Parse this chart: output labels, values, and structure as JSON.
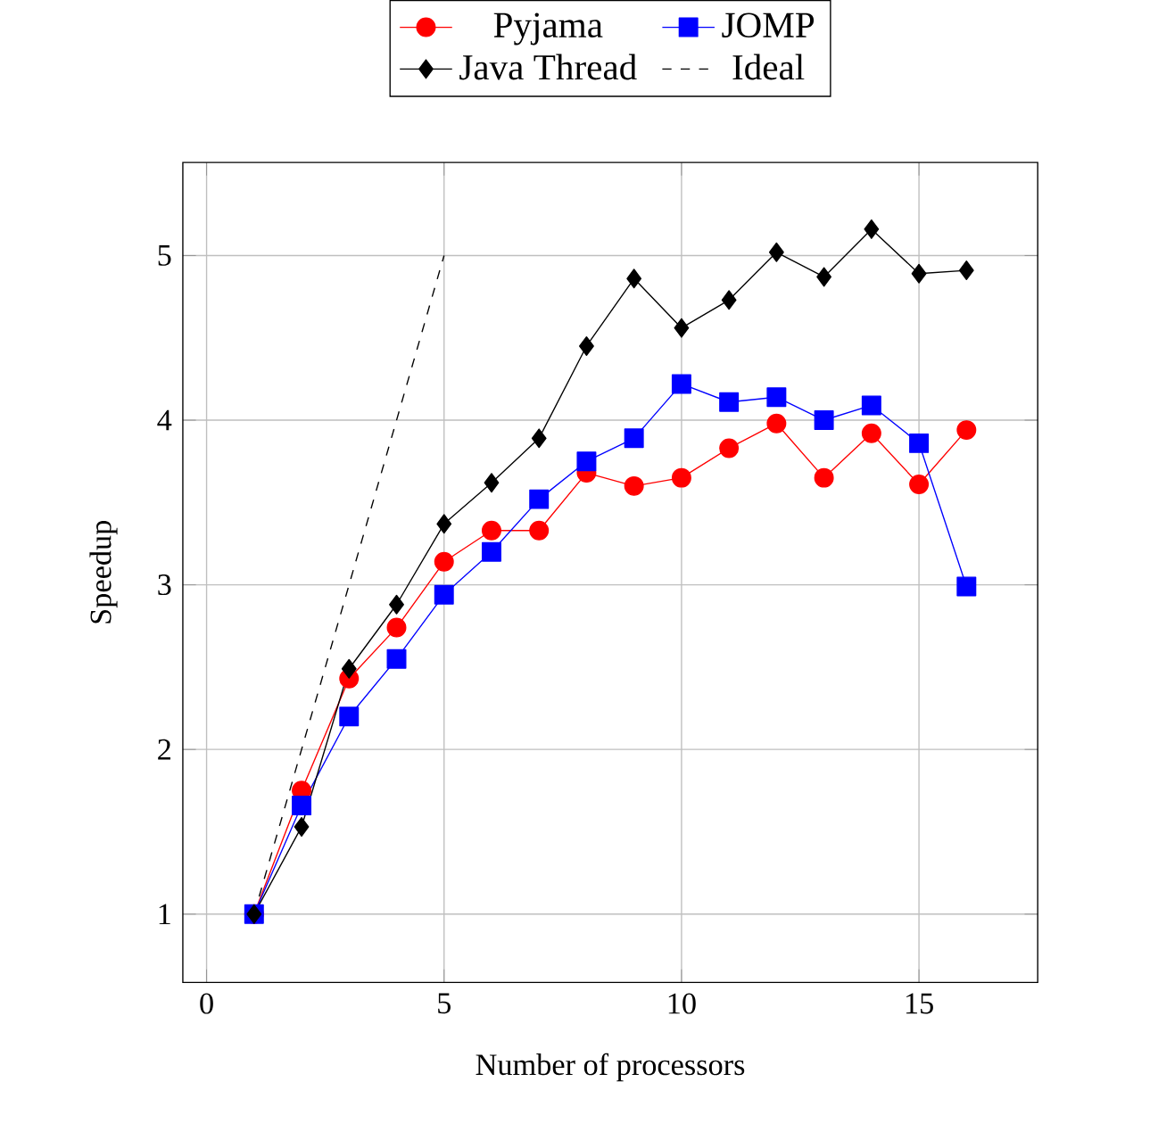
{
  "chart_data": {
    "type": "line",
    "xlabel": "Number of processors",
    "ylabel": "Speedup",
    "xlim": [
      -0.5,
      17.5
    ],
    "ylim": [
      0.585,
      5.565
    ],
    "xticks": [
      0,
      5,
      10,
      15
    ],
    "yticks": [
      1,
      2,
      3,
      4,
      5
    ],
    "grid": true,
    "legend": "top",
    "series": [
      {
        "name": "Pyjama",
        "color": "#ff0000",
        "marker": "circle",
        "line_style": "solid",
        "x": [
          1,
          2,
          3,
          4,
          5,
          6,
          7,
          8,
          9,
          10,
          11,
          12,
          13,
          14,
          15,
          16
        ],
        "values": [
          1.0,
          1.75,
          2.43,
          2.74,
          3.14,
          3.33,
          3.33,
          3.68,
          3.6,
          3.65,
          3.83,
          3.98,
          3.65,
          3.92,
          3.61,
          3.94
        ]
      },
      {
        "name": "JOMP",
        "color": "#0000ff",
        "marker": "square",
        "line_style": "solid",
        "x": [
          1,
          2,
          3,
          4,
          5,
          6,
          7,
          8,
          9,
          10,
          11,
          12,
          13,
          14,
          15,
          16
        ],
        "values": [
          1.0,
          1.66,
          2.2,
          2.55,
          2.94,
          3.2,
          3.52,
          3.75,
          3.89,
          4.22,
          4.11,
          4.14,
          4.0,
          4.09,
          3.86,
          2.99
        ]
      },
      {
        "name": "Java Thread",
        "color": "#000000",
        "marker": "diamond",
        "line_style": "solid",
        "x": [
          1,
          2,
          3,
          4,
          5,
          6,
          7,
          8,
          9,
          10,
          11,
          12,
          13,
          14,
          15,
          16
        ],
        "values": [
          1.0,
          1.53,
          2.49,
          2.88,
          3.37,
          3.62,
          3.89,
          4.45,
          4.86,
          4.56,
          4.73,
          5.02,
          4.87,
          5.16,
          4.89,
          4.91
        ]
      },
      {
        "name": "Ideal",
        "color": "#000000",
        "marker": "none",
        "line_style": "dashed",
        "x": [
          1,
          5
        ],
        "values": [
          1,
          5
        ]
      }
    ]
  }
}
